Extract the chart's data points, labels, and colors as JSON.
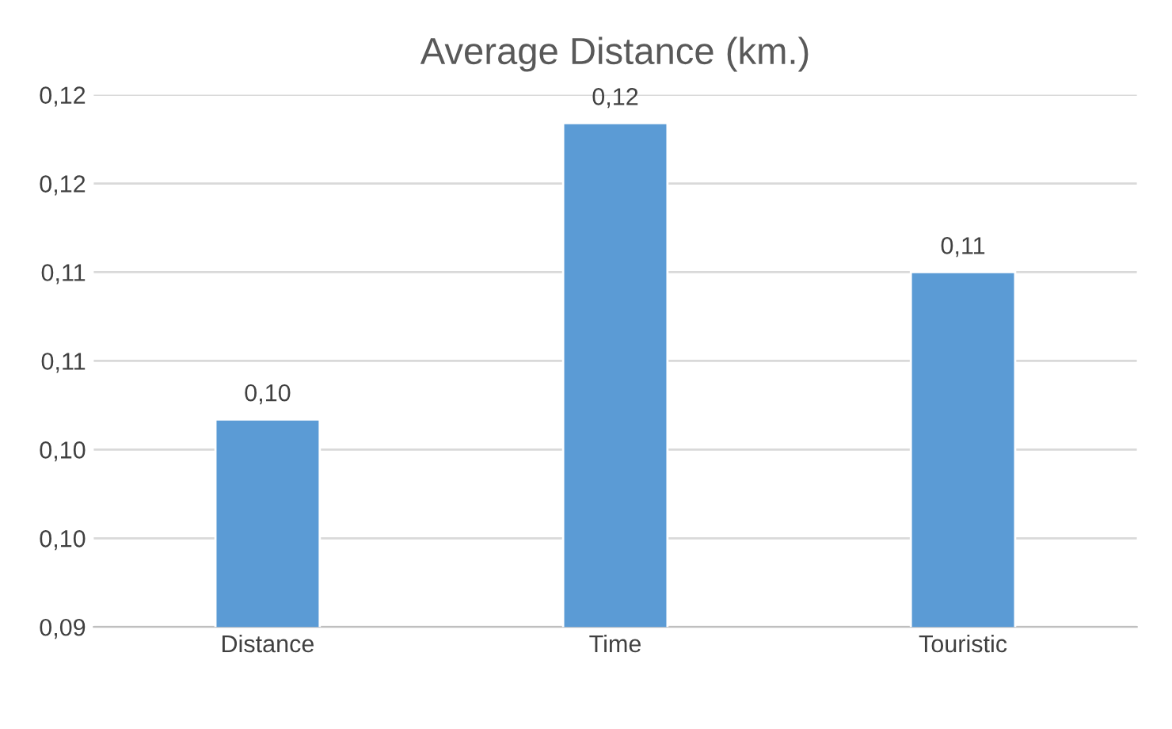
{
  "chart_data": {
    "type": "bar",
    "title": "Average Distance (km.)",
    "categories": [
      "Distance",
      "Time",
      "Touristic"
    ],
    "values": [
      0.1017,
      0.1184,
      0.11
    ],
    "value_labels": [
      "0,10",
      "0,12",
      "0,11"
    ],
    "color": "#5b9bd5",
    "ylim": [
      0.09,
      0.12
    ],
    "yticks": [
      {
        "value": 0.09,
        "label": "0,09"
      },
      {
        "value": 0.095,
        "label": "0,10"
      },
      {
        "value": 0.1,
        "label": "0,10"
      },
      {
        "value": 0.105,
        "label": "0,11"
      },
      {
        "value": 0.11,
        "label": "0,11"
      },
      {
        "value": 0.115,
        "label": "0,12"
      },
      {
        "value": 0.12,
        "label": "0,12"
      }
    ],
    "grid": "y"
  }
}
